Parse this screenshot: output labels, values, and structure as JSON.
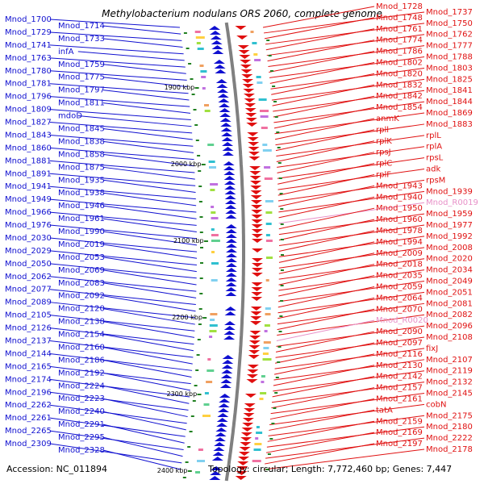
{
  "title": "Methylobacterium nodulans ORS 2060, complete genome",
  "accession": "Accession: NC_011894",
  "summary": "Topology: circular; Length: 7,772,460 bp; Genes: 7,447",
  "colors": {
    "minus": "#1010d0",
    "plus": "#e01010",
    "pseudo": "#e890c8",
    "ruler": "#606060"
  },
  "ruler": [
    "1900 kbp",
    "2000 kbp",
    "2100 kbp",
    "2200 kbp",
    "2300 kbp",
    "2400 kbp"
  ],
  "left_labels": [
    "Mnod_1700",
    "Mnod_1714",
    "Mnod_1729",
    "Mnod_1733",
    "Mnod_1741",
    "infA",
    "Mnod_1763",
    "Mnod_1759",
    "Mnod_1780",
    "Mnod_1775",
    "Mnod_1781",
    "Mnod_1797",
    "Mnod_1796",
    "Mnod_1811",
    "Mnod_1809",
    "mdoD",
    "Mnod_1827",
    "Mnod_1845",
    "Mnod_1843",
    "Mnod_1838",
    "Mnod_1860",
    "Mnod_1858",
    "Mnod_1881",
    "Mnod_1875",
    "Mnod_1891",
    "Mnod_1935",
    "Mnod_1941",
    "Mnod_1938",
    "Mnod_1949",
    "Mnod_1946",
    "Mnod_1966",
    "Mnod_1961",
    "Mnod_1976",
    "Mnod_1990",
    "Mnod_2030",
    "Mnod_2019",
    "Mnod_2029",
    "Mnod_2053",
    "Mnod_2050",
    "Mnod_2069",
    "Mnod_2062",
    "Mnod_2083",
    "Mnod_2077",
    "Mnod_2092",
    "Mnod_2089",
    "Mnod_2120",
    "Mnod_2105",
    "Mnod_2138",
    "Mnod_2126",
    "Mnod_2154",
    "Mnod_2137",
    "Mnod_2160",
    "Mnod_2144",
    "Mnod_2186",
    "Mnod_2165",
    "Mnod_2192",
    "Mnod_2174",
    "Mnod_2224",
    "Mnod_2196",
    "Mnod_2223",
    "Mnod_2262",
    "Mnod_2240",
    "Mnod_2261",
    "Mnod_2291",
    "Mnod_2265",
    "Mnod_2295",
    "Mnod_2309",
    "Mnod_2328"
  ],
  "right_labels": [
    "Mnod_1728",
    "Mnod_1737",
    "Mnod_1748",
    "Mnod_1750",
    "Mnod_1761",
    "Mnod_1762",
    "Mnod_1774",
    "Mnod_1777",
    "Mnod_1786",
    "Mnod_1788",
    "Mnod_1802",
    "Mnod_1803",
    "Mnod_1820",
    "Mnod_1825",
    "Mnod_1832",
    "Mnod_1841",
    "Mnod_1842",
    "Mnod_1844",
    "Mnod_1854",
    "Mnod_1869",
    "anmK",
    "Mnod_1883",
    "rpll",
    "rplL",
    "rplK",
    "rplA",
    "rpsJ",
    "rpsL",
    "rplC",
    "adk",
    "rplF",
    "rpsM",
    "Mnod_1943",
    "Mnod_1939",
    "Mnod_1940",
    "Mnod_R0019",
    "Mnod_1950",
    "Mnod_1959",
    "Mnod_1960",
    "Mnod_1977",
    "Mnod_1978",
    "Mnod_1992",
    "Mnod_1994",
    "Mnod_2008",
    "Mnod_2009",
    "Mnod_2020",
    "Mnod_2018",
    "Mnod_2034",
    "Mnod_2035",
    "Mnod_2049",
    "Mnod_2059",
    "Mnod_2051",
    "Mnod_2064",
    "Mnod_2081",
    "Mnod_2070",
    "Mnod_2082",
    "Mnod_R0020",
    "Mnod_2096",
    "Mnod_2090",
    "Mnod_2108",
    "Mnod_2097",
    "fixJ",
    "Mnod_2116",
    "Mnod_2107",
    "Mnod_2130",
    "Mnod_2119",
    "Mnod_2142",
    "Mnod_2132",
    "Mnod_2157",
    "Mnod_2145",
    "Mnod_2161",
    "cobN",
    "tatA",
    "Mnod_2175",
    "Mnod_2159",
    "Mnod_2180",
    "Mnod_2169",
    "Mnod_2222",
    "Mnod_2197",
    "Mnod_2178"
  ],
  "pseudo_labels": [
    "Mnod_R0019",
    "Mnod_R0020"
  ]
}
